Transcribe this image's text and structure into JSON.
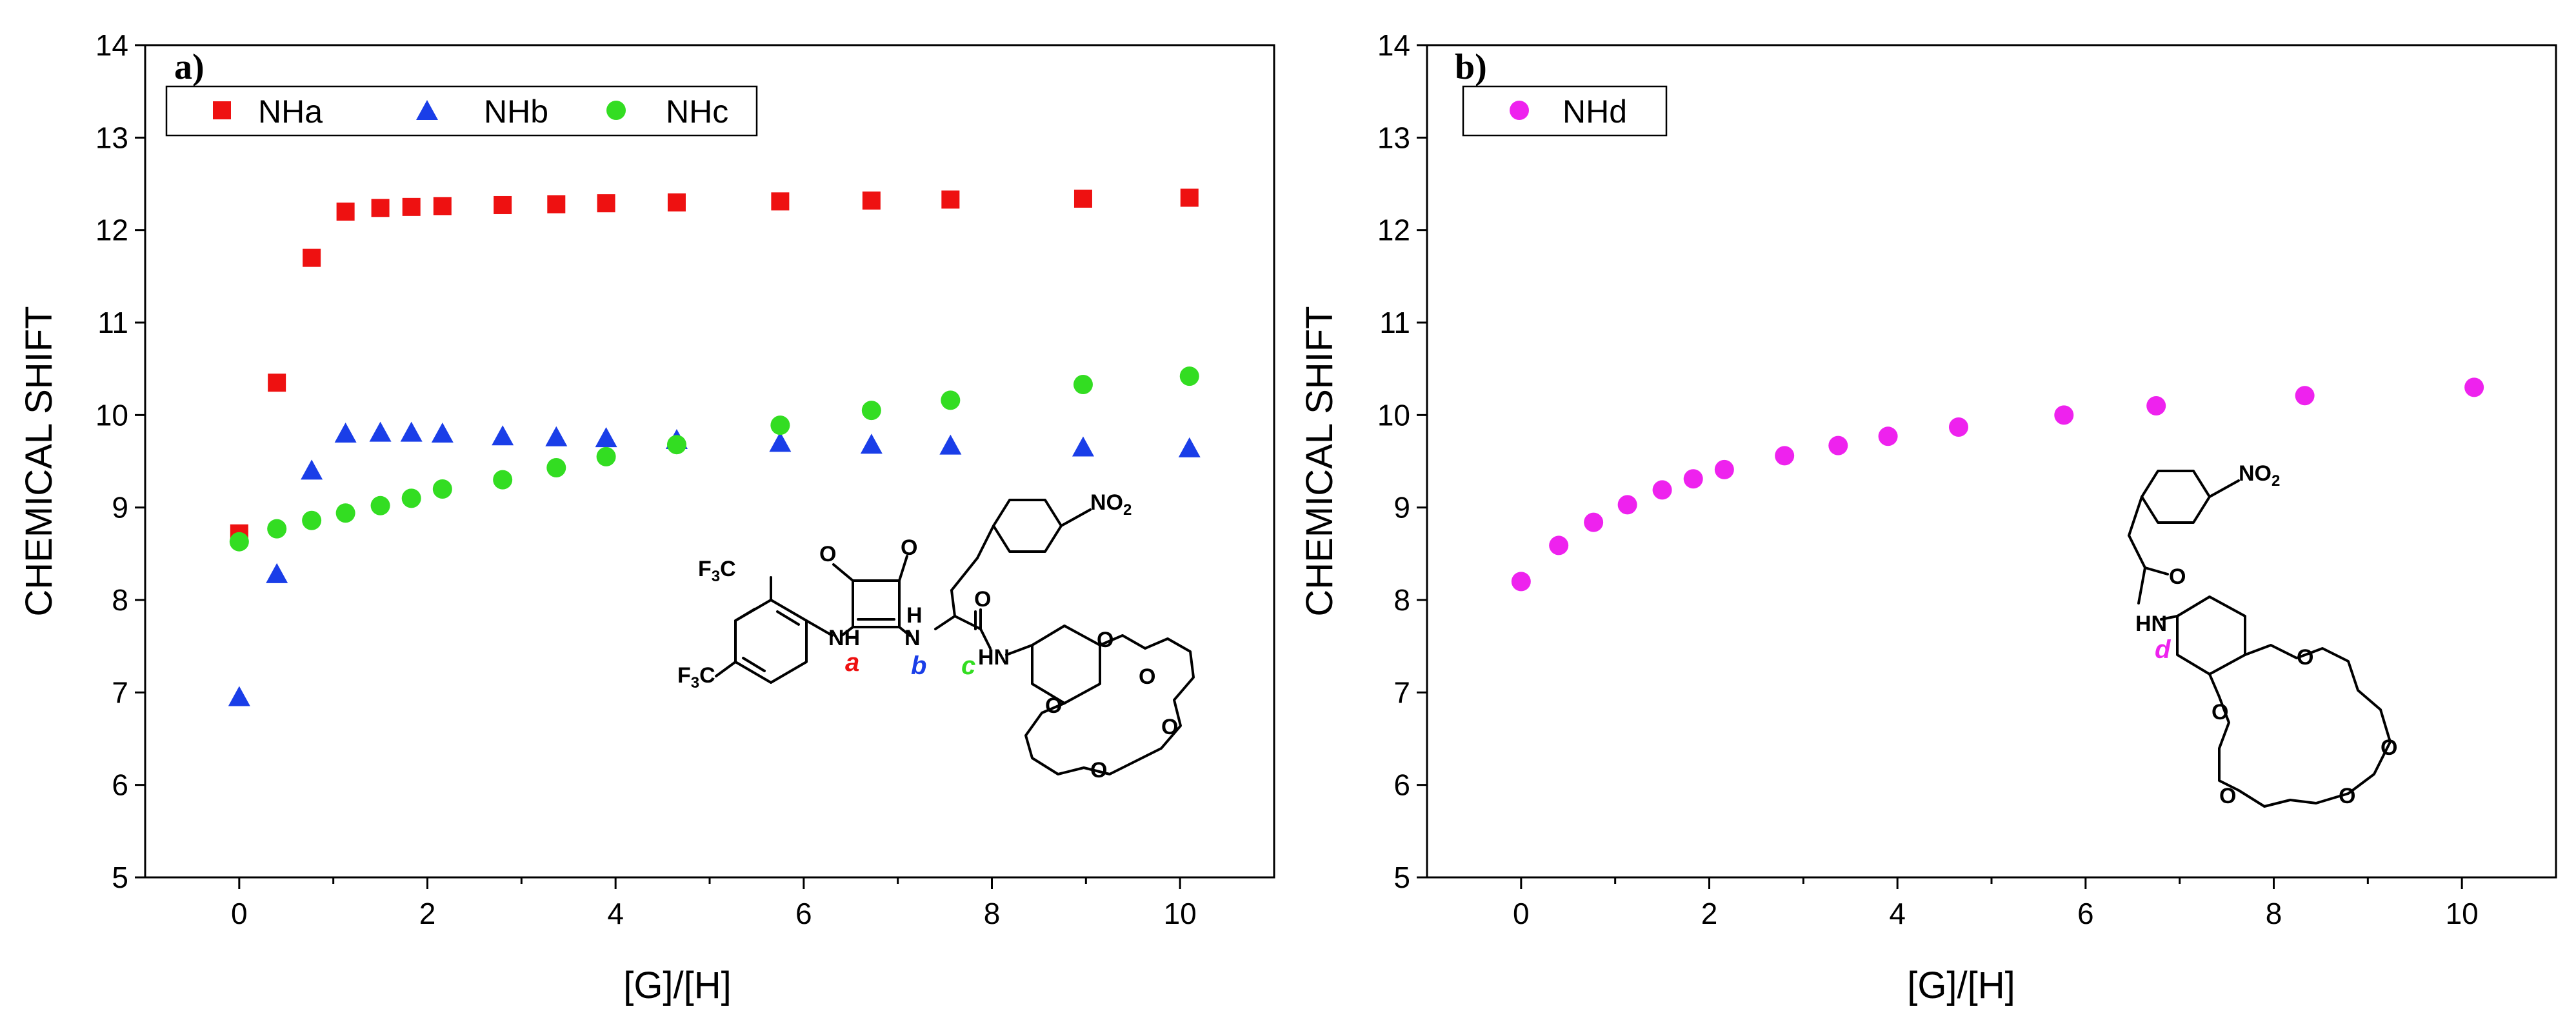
{
  "chart_data": [
    {
      "type": "scatter",
      "panel_label": "a)",
      "xlabel": "[G]/[H]",
      "ylabel": "CHEMICAL SHIFT",
      "xlim": [
        -1,
        11
      ],
      "ylim": [
        5,
        14
      ],
      "xticks": [
        "0",
        "2",
        "4",
        "6",
        "8",
        "10"
      ],
      "yticks": [
        "5",
        "6",
        "7",
        "8",
        "9",
        "10",
        "11",
        "12",
        "13",
        "14"
      ],
      "legend_position": "top-left",
      "series": [
        {
          "name": "NHa",
          "marker": "square",
          "color": "#ee1111",
          "x": [
            0,
            0.4,
            0.77,
            1.13,
            1.5,
            1.83,
            2.16,
            2.8,
            3.37,
            3.9,
            4.65,
            5.75,
            6.72,
            7.56,
            8.97,
            10.1
          ],
          "y": [
            8.72,
            10.35,
            11.7,
            12.2,
            12.24,
            12.25,
            12.26,
            12.27,
            12.28,
            12.29,
            12.3,
            12.31,
            12.32,
            12.33,
            12.34,
            12.35
          ]
        },
        {
          "name": "NHb",
          "marker": "triangle",
          "color": "#1a3ee8",
          "x": [
            0,
            0.4,
            0.77,
            1.13,
            1.5,
            1.83,
            2.16,
            2.8,
            3.37,
            3.9,
            4.65,
            5.75,
            6.72,
            7.56,
            8.97,
            10.1
          ],
          "y": [
            6.95,
            8.28,
            9.4,
            9.8,
            9.81,
            9.81,
            9.8,
            9.77,
            9.76,
            9.75,
            9.73,
            9.7,
            9.68,
            9.67,
            9.65,
            9.64
          ]
        },
        {
          "name": "NHc",
          "marker": "circle",
          "color": "#33dd22",
          "x": [
            0,
            0.4,
            0.77,
            1.13,
            1.5,
            1.83,
            2.16,
            2.8,
            3.37,
            3.9,
            4.65,
            5.75,
            6.72,
            7.56,
            8.97,
            10.1
          ],
          "y": [
            8.63,
            8.77,
            8.86,
            8.94,
            9.02,
            9.1,
            9.2,
            9.3,
            9.43,
            9.55,
            9.68,
            9.89,
            10.05,
            10.16,
            10.33,
            10.42
          ]
        }
      ],
      "molecule_site_labels": [
        {
          "text": "a",
          "color": "#ee1111"
        },
        {
          "text": "b",
          "color": "#1a3ee8"
        },
        {
          "text": "c",
          "color": "#33dd22"
        }
      ]
    },
    {
      "type": "scatter",
      "panel_label": "b)",
      "xlabel": "[G]/[H]",
      "ylabel": "CHEMICAL SHIFT",
      "xlim": [
        -1,
        11
      ],
      "ylim": [
        5,
        14
      ],
      "xticks": [
        "0",
        "2",
        "4",
        "6",
        "8",
        "10"
      ],
      "yticks": [
        "5",
        "6",
        "7",
        "8",
        "9",
        "10",
        "11",
        "12",
        "13",
        "14"
      ],
      "legend_position": "top-left",
      "series": [
        {
          "name": "NHd",
          "marker": "circle",
          "color": "#ee22ee",
          "x": [
            0,
            0.4,
            0.77,
            1.13,
            1.5,
            1.83,
            2.16,
            2.8,
            3.37,
            3.9,
            4.65,
            5.77,
            6.75,
            8.33,
            10.13
          ],
          "y": [
            8.2,
            8.59,
            8.84,
            9.03,
            9.19,
            9.31,
            9.41,
            9.56,
            9.67,
            9.77,
            9.87,
            10.0,
            10.1,
            10.21,
            10.3
          ]
        }
      ],
      "molecule_site_labels": [
        {
          "text": "d",
          "color": "#ee22ee"
        }
      ]
    }
  ],
  "molecule_text": {
    "nitro": "NO",
    "nitro_sub": "2",
    "cf3_f": "F",
    "cf3_c": "C",
    "cf3_sub": "3",
    "nh": "NH",
    "hn": "HN",
    "n": "N",
    "h": "H",
    "o": "O"
  }
}
